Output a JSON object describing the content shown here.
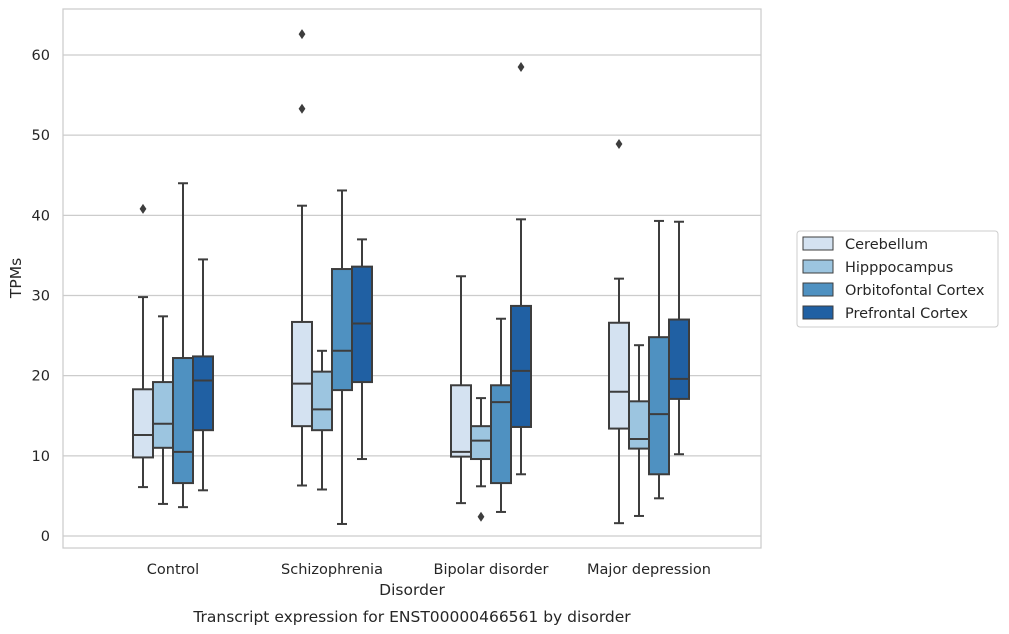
{
  "caption": "Transcript expression for ENST00000466561 by disorder",
  "chart_data": {
    "type": "box",
    "xlabel": "Disorder",
    "ylabel": "TPMs",
    "ylim": [
      -1.5,
      66
    ],
    "yticks": [
      0,
      10,
      20,
      30,
      40,
      50,
      60
    ],
    "grid": "horizontal",
    "legend_position": "right",
    "categories": [
      "Control",
      "Schizophrenia",
      "Bipolar disorder",
      "Major depression"
    ],
    "series": [
      {
        "name": "Cerebellum",
        "color": "#d4e2f1",
        "boxes": [
          {
            "whislo": 6.1,
            "q1": 9.8,
            "med": 12.6,
            "q3": 18.3,
            "whishi": 29.8,
            "fliers": [
              40.8
            ]
          },
          {
            "whislo": 6.3,
            "q1": 13.7,
            "med": 19.0,
            "q3": 26.7,
            "whishi": 41.2,
            "fliers": [
              53.3,
              62.6
            ]
          },
          {
            "whislo": 4.1,
            "q1": 9.9,
            "med": 10.5,
            "q3": 18.8,
            "whishi": 32.4,
            "fliers": []
          },
          {
            "whislo": 1.6,
            "q1": 13.4,
            "med": 18.0,
            "q3": 26.6,
            "whishi": 32.1,
            "fliers": [
              48.9
            ]
          }
        ]
      },
      {
        "name": "Hipppocampus",
        "color": "#9cc5e0",
        "boxes": [
          {
            "whislo": 4.0,
            "q1": 11.0,
            "med": 14.0,
            "q3": 19.2,
            "whishi": 27.4,
            "fliers": []
          },
          {
            "whislo": 5.8,
            "q1": 13.2,
            "med": 15.8,
            "q3": 20.5,
            "whishi": 23.1,
            "fliers": []
          },
          {
            "whislo": 6.2,
            "q1": 9.6,
            "med": 11.9,
            "q3": 13.7,
            "whishi": 17.2,
            "fliers": [
              2.4
            ]
          },
          {
            "whislo": 2.5,
            "q1": 10.9,
            "med": 12.1,
            "q3": 16.8,
            "whishi": 23.8,
            "fliers": []
          }
        ]
      },
      {
        "name": "Orbitofontal Cortex",
        "color": "#4f91c1",
        "boxes": [
          {
            "whislo": 3.6,
            "q1": 6.6,
            "med": 10.5,
            "q3": 22.2,
            "whishi": 44.0,
            "fliers": []
          },
          {
            "whislo": 1.5,
            "q1": 18.2,
            "med": 23.1,
            "q3": 33.3,
            "whishi": 43.1,
            "fliers": []
          },
          {
            "whislo": 3.0,
            "q1": 6.6,
            "med": 16.7,
            "q3": 18.8,
            "whishi": 27.1,
            "fliers": []
          },
          {
            "whislo": 4.7,
            "q1": 7.7,
            "med": 15.2,
            "q3": 24.8,
            "whishi": 39.3,
            "fliers": []
          }
        ]
      },
      {
        "name": "Prefrontal Cortex",
        "color": "#2060a3",
        "boxes": [
          {
            "whislo": 5.7,
            "q1": 13.2,
            "med": 19.4,
            "q3": 22.4,
            "whishi": 34.5,
            "fliers": []
          },
          {
            "whislo": 9.6,
            "q1": 19.2,
            "med": 26.5,
            "q3": 33.6,
            "whishi": 37.0,
            "fliers": []
          },
          {
            "whislo": 7.7,
            "q1": 13.6,
            "med": 20.6,
            "q3": 28.7,
            "whishi": 39.5,
            "fliers": [
              58.5
            ]
          },
          {
            "whislo": 10.2,
            "q1": 17.1,
            "med": 19.6,
            "q3": 27.0,
            "whishi": 39.2,
            "fliers": []
          }
        ]
      }
    ]
  }
}
